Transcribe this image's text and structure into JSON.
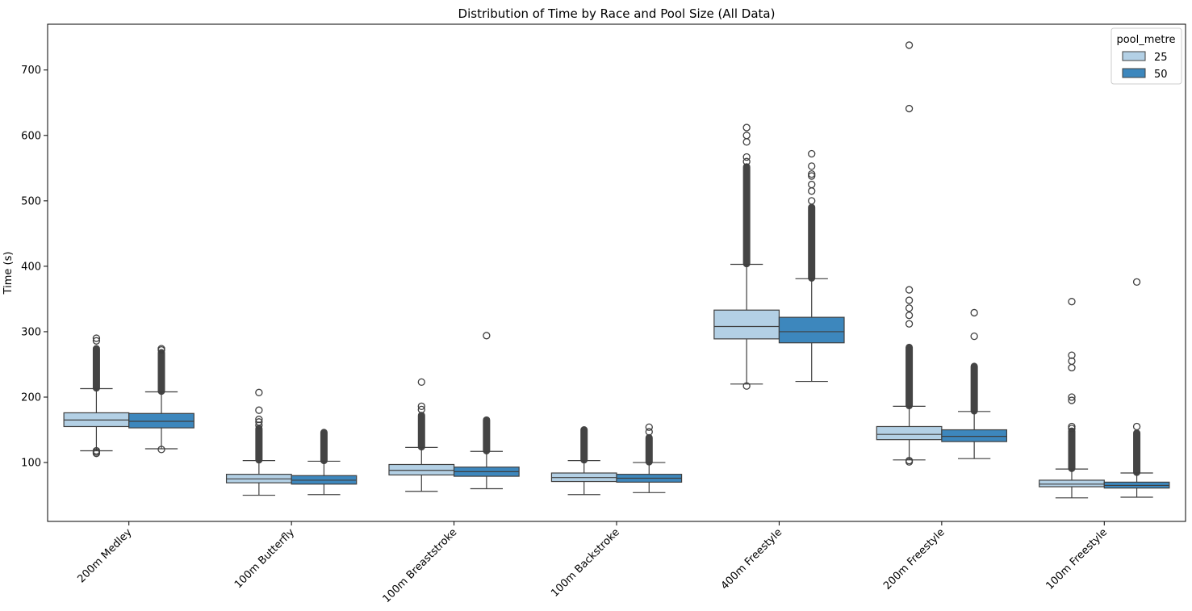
{
  "chart_data": {
    "type": "box",
    "title": "Distribution of Time by Race and Pool Size (All Data)",
    "xlabel": "",
    "ylabel": "Time (s)",
    "ylim": [
      10,
      770
    ],
    "yticks": [
      100,
      200,
      300,
      400,
      500,
      600,
      700
    ],
    "categories": [
      "200m Medley",
      "100m Butterfly",
      "100m Breaststroke",
      "100m Backstroke",
      "400m Freestyle",
      "200m Freestyle",
      "100m Freestyle"
    ],
    "legend": {
      "title": "pool_metre",
      "position": "top-right"
    },
    "series": [
      {
        "name": "25",
        "color": "#b3d0e5",
        "boxes": [
          {
            "whislo": 118,
            "q1": 155,
            "med": 165,
            "q3": 176,
            "whishi": 213,
            "outliers_low": [
              114,
              116,
              118
            ],
            "outliers_high_dense": [
              214,
              274
            ],
            "outliers_high": [
              286,
              290
            ]
          },
          {
            "whislo": 50,
            "q1": 69,
            "med": 75,
            "q3": 82,
            "whishi": 103,
            "outliers_low": [],
            "outliers_high_dense": [
              104,
              152
            ],
            "outliers_high": [
              157,
              162,
              166,
              180,
              207
            ]
          },
          {
            "whislo": 56,
            "q1": 81,
            "med": 88,
            "q3": 97,
            "whishi": 123,
            "outliers_low": [],
            "outliers_high_dense": [
              124,
              172
            ],
            "outliers_high": [
              181,
              186,
              223
            ]
          },
          {
            "whislo": 51,
            "q1": 71,
            "med": 77,
            "q3": 84,
            "whishi": 103,
            "outliers_low": [],
            "outliers_high_dense": [
              104,
              150
            ],
            "outliers_high": []
          },
          {
            "whislo": 220,
            "q1": 289,
            "med": 308,
            "q3": 333,
            "whishi": 403,
            "outliers_low": [
              217
            ],
            "outliers_high_dense": [
              404,
              552
            ],
            "outliers_high": [
              560,
              567,
              590,
              600,
              612
            ]
          },
          {
            "whislo": 104,
            "q1": 135,
            "med": 143,
            "q3": 155,
            "whishi": 186,
            "outliers_low": [
              101,
              103
            ],
            "outliers_high_dense": [
              187,
              276
            ],
            "outliers_high": [
              312,
              325,
              336,
              348,
              364,
              641,
              738
            ]
          },
          {
            "whislo": 46,
            "q1": 63,
            "med": 67,
            "q3": 73,
            "whishi": 90,
            "outliers_low": [],
            "outliers_high_dense": [
              91,
              148
            ],
            "outliers_high": [
              152,
              155,
              195,
              200,
              245,
              255,
              264,
              346
            ]
          }
        ]
      },
      {
        "name": "50",
        "color": "#3d87bd",
        "boxes": [
          {
            "whislo": 121,
            "q1": 153,
            "med": 163,
            "q3": 175,
            "whishi": 208,
            "outliers_low": [
              120
            ],
            "outliers_high_dense": [
              209,
              268
            ],
            "outliers_high": [
              272,
              274
            ]
          },
          {
            "whislo": 51,
            "q1": 67,
            "med": 73,
            "q3": 80,
            "whishi": 102,
            "outliers_low": [],
            "outliers_high_dense": [
              103,
              146
            ],
            "outliers_high": []
          },
          {
            "whislo": 60,
            "q1": 79,
            "med": 86,
            "q3": 93,
            "whishi": 117,
            "outliers_low": [],
            "outliers_high_dense": [
              118,
              165
            ],
            "outliers_high": [
              294
            ]
          },
          {
            "whislo": 54,
            "q1": 70,
            "med": 76,
            "q3": 82,
            "whishi": 100,
            "outliers_low": [],
            "outliers_high_dense": [
              101,
              138
            ],
            "outliers_high": [
              147,
              154
            ]
          },
          {
            "whislo": 224,
            "q1": 283,
            "med": 300,
            "q3": 322,
            "whishi": 381,
            "outliers_low": [],
            "outliers_high_dense": [
              382,
              490
            ],
            "outliers_high": [
              500,
              515,
              525,
              538,
              541,
              553,
              572
            ]
          },
          {
            "whislo": 106,
            "q1": 132,
            "med": 140,
            "q3": 150,
            "whishi": 178,
            "outliers_low": [],
            "outliers_high_dense": [
              179,
              247
            ],
            "outliers_high": [
              293,
              329
            ]
          },
          {
            "whislo": 47,
            "q1": 61,
            "med": 65,
            "q3": 70,
            "whishi": 84,
            "outliers_low": [],
            "outliers_high_dense": [
              85,
              145
            ],
            "outliers_high": [
              155,
              376
            ]
          }
        ]
      }
    ]
  }
}
